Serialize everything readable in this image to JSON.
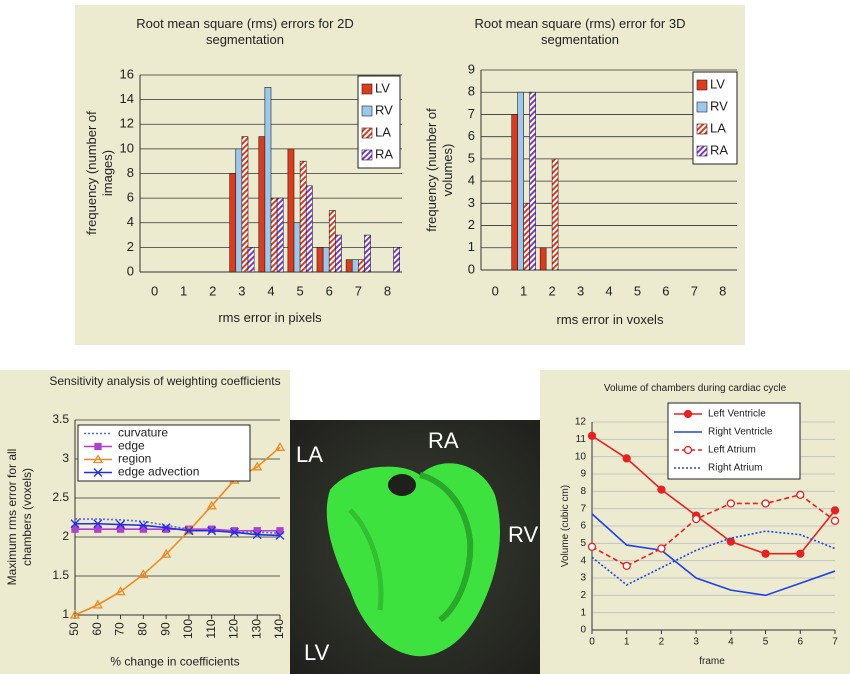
{
  "chart_data": [
    {
      "type": "bar",
      "title": "Root mean square (rms) errors for 2D segmentation",
      "y_label": "frequency (number of images)",
      "x_label": "rms error in pixels",
      "categories": [
        "0",
        "1",
        "2",
        "3",
        "4",
        "5",
        "6",
        "7",
        "8"
      ],
      "series": [
        {
          "name": "LV",
          "color": "#e03a1c",
          "values": [
            0,
            0,
            0,
            8,
            11,
            10,
            2,
            1,
            0
          ]
        },
        {
          "name": "RV",
          "color": "#9cc8ee",
          "values": [
            0,
            0,
            0,
            10,
            15,
            4,
            2,
            1,
            0
          ]
        },
        {
          "name": "LA",
          "color": "#e03a1c",
          "hatch": true,
          "values": [
            0,
            0,
            0,
            11,
            6,
            9,
            5,
            1,
            0
          ]
        },
        {
          "name": "RA",
          "color": "#7a3ac8",
          "hatch": true,
          "values": [
            0,
            0,
            0,
            2,
            6,
            7,
            3,
            3,
            2
          ]
        }
      ],
      "ylim": [
        0,
        16
      ],
      "yticks": [
        0,
        2,
        4,
        6,
        8,
        10,
        12,
        14,
        16
      ],
      "grid": true,
      "legend": "upper right"
    },
    {
      "type": "bar",
      "title": "Root mean square (rms) error for 3D segmentation",
      "y_label": "frequency (number of volumes)",
      "x_label": "rms error in voxels",
      "categories": [
        "0",
        "1",
        "2",
        "3",
        "4",
        "5",
        "6",
        "7",
        "8"
      ],
      "series": [
        {
          "name": "LV",
          "color": "#e03a1c",
          "values": [
            0,
            7,
            1,
            0,
            0,
            0,
            0,
            0,
            0
          ]
        },
        {
          "name": "RV",
          "color": "#9cc8ee",
          "values": [
            0,
            8,
            0,
            0,
            0,
            0,
            0,
            0,
            0
          ]
        },
        {
          "name": "LA",
          "color": "#e03a1c",
          "hatch": true,
          "values": [
            0,
            3,
            5,
            0,
            0,
            0,
            0,
            0,
            0
          ]
        },
        {
          "name": "RA",
          "color": "#7a3ac8",
          "hatch": true,
          "values": [
            0,
            8,
            0,
            0,
            0,
            0,
            0,
            0,
            0
          ]
        }
      ],
      "ylim": [
        0,
        9
      ],
      "yticks": [
        0,
        1,
        2,
        3,
        4,
        5,
        6,
        7,
        8,
        9
      ],
      "grid": true,
      "legend": "upper right"
    },
    {
      "type": "line",
      "title": "Sensitivity analysis of weighting coefficients",
      "y_label": "Maximum rms error for all chambers (voxels)",
      "x_label": "% change in coefficients",
      "x": [
        50,
        60,
        70,
        80,
        90,
        100,
        110,
        120,
        130,
        140
      ],
      "series": [
        {
          "name": "curvature",
          "color": "#5a6ad8",
          "dash": "dotted",
          "marker": "none",
          "values": [
            2.23,
            2.23,
            2.22,
            2.2,
            2.15,
            2.1,
            2.08,
            2.07,
            2.06,
            2.05
          ]
        },
        {
          "name": "edge",
          "color": "#b040d0",
          "dash": "solid",
          "marker": "square",
          "values": [
            2.1,
            2.1,
            2.1,
            2.1,
            2.1,
            2.1,
            2.1,
            2.08,
            2.08,
            2.08
          ]
        },
        {
          "name": "region",
          "color": "#f08a20",
          "dash": "solid",
          "marker": "triangle",
          "values": [
            1.0,
            1.13,
            1.3,
            1.52,
            1.78,
            2.08,
            2.4,
            2.73,
            2.9,
            3.15
          ]
        },
        {
          "name": "edge advection",
          "color": "#2030e0",
          "dash": "solid",
          "marker": "x",
          "values": [
            2.17,
            2.17,
            2.16,
            2.15,
            2.12,
            2.08,
            2.08,
            2.06,
            2.03,
            2.02
          ]
        }
      ],
      "xlim": [
        50,
        140
      ],
      "xticks": [
        50,
        60,
        70,
        80,
        90,
        100,
        110,
        120,
        130,
        140
      ],
      "ylim": [
        1,
        3.5
      ],
      "yticks": [
        1,
        1.5,
        2,
        2.5,
        3,
        3.5
      ],
      "grid": true,
      "legend": "upper left"
    },
    {
      "type": "line",
      "title": "Volume of chambers during cardiac cycle",
      "y_label": "Volume (cubic cm)",
      "x_label": "frame",
      "x": [
        0,
        1,
        2,
        3,
        4,
        5,
        6,
        7
      ],
      "series": [
        {
          "name": "Left Ventricle",
          "color": "#e82020",
          "dash": "solid",
          "marker": "circle",
          "values": [
            11.2,
            9.9,
            8.1,
            6.6,
            5.1,
            4.4,
            4.4,
            6.9
          ]
        },
        {
          "name": "Right Ventricle",
          "color": "#2040e8",
          "dash": "solid",
          "marker": "none",
          "values": [
            6.7,
            4.9,
            4.6,
            3.0,
            2.3,
            2.0,
            2.7,
            3.4
          ]
        },
        {
          "name": "Left Atrium",
          "color": "#e82020",
          "dash": "dashed",
          "marker": "open-circle",
          "values": [
            4.8,
            3.7,
            4.7,
            6.4,
            7.3,
            7.3,
            7.8,
            6.3
          ]
        },
        {
          "name": "Right Atrium",
          "color": "#2040e8",
          "dash": "dotted",
          "marker": "none",
          "values": [
            4.2,
            2.6,
            3.6,
            4.6,
            5.3,
            5.7,
            5.5,
            4.7
          ]
        }
      ],
      "xlim": [
        0,
        7
      ],
      "xticks": [
        0,
        1,
        2,
        3,
        4,
        5,
        6,
        7
      ],
      "ylim": [
        0,
        12
      ],
      "yticks": [
        0,
        1,
        2,
        3,
        4,
        5,
        6,
        7,
        8,
        9,
        10,
        11,
        12
      ],
      "grid": true,
      "legend": "upper center"
    }
  ],
  "image": {
    "labels": [
      "LA",
      "RA",
      "RV",
      "LV"
    ]
  }
}
